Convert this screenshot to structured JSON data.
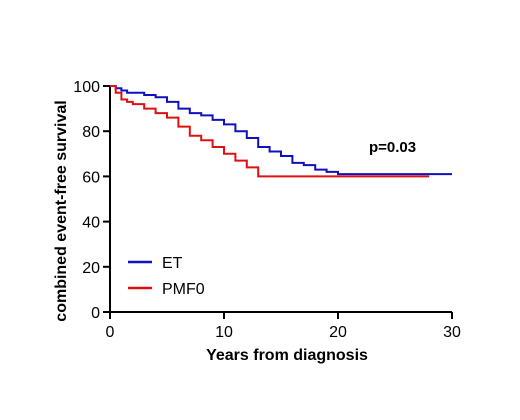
{
  "chart_data": {
    "type": "line",
    "title": "",
    "xlabel": "Years from diagnosis",
    "ylabel": "combined event-free survival",
    "xlim": [
      0,
      30
    ],
    "ylim": [
      0,
      100
    ],
    "xticks": [
      0,
      10,
      20,
      30
    ],
    "yticks": [
      0,
      20,
      40,
      60,
      80,
      100
    ],
    "xtick_labels": [
      "0",
      "10",
      "20",
      "30"
    ],
    "ytick_labels": [
      "0",
      "20",
      "40",
      "60",
      "80",
      "100"
    ],
    "grid": false,
    "legend_position": "bottom-left",
    "annotation": "p=0.03",
    "series": [
      {
        "name": "ET",
        "color": "#1010c0",
        "x": [
          0,
          0.5,
          1,
          1.5,
          2,
          3,
          4,
          5,
          6,
          7,
          8,
          9,
          10,
          11,
          12,
          13,
          14,
          15,
          16,
          17,
          18,
          19,
          20,
          25,
          30
        ],
        "y": [
          100,
          99,
          98,
          97,
          97,
          96,
          95,
          93,
          90,
          88,
          87,
          85,
          83,
          80,
          77,
          73,
          71,
          69,
          66,
          65,
          63,
          62,
          61,
          61,
          61
        ]
      },
      {
        "name": "PMF0",
        "color": "#e01010",
        "x": [
          0,
          0.5,
          1,
          1.5,
          2,
          3,
          4,
          5,
          6,
          7,
          8,
          9,
          10,
          11,
          12,
          13,
          20,
          28
        ],
        "y": [
          100,
          97,
          94,
          93,
          92,
          90,
          88,
          86,
          82,
          78,
          76,
          73,
          70,
          67,
          64,
          60,
          60,
          60
        ]
      }
    ]
  }
}
